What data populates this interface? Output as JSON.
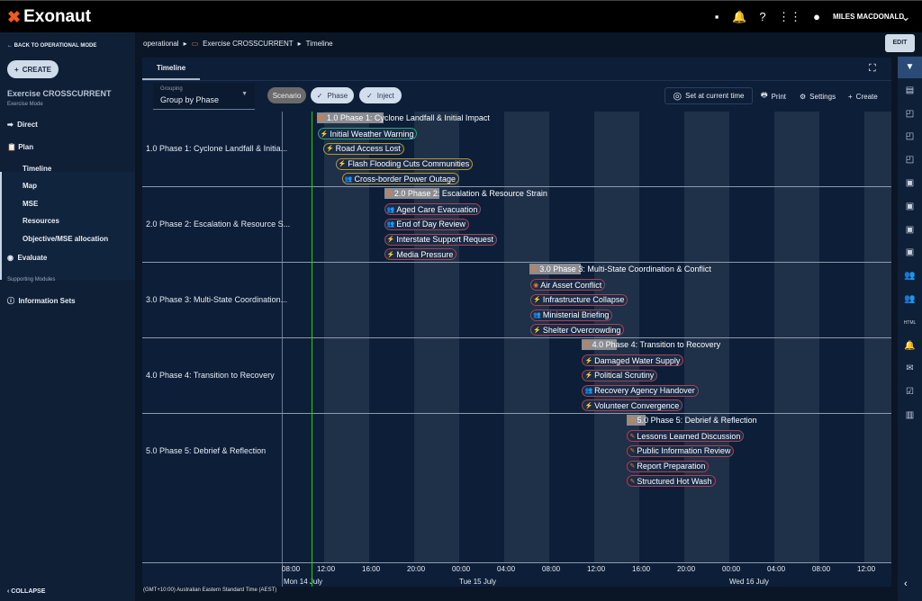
{
  "app": {
    "name": "Exonaut",
    "user": "MILES MACDONALD"
  },
  "topbar_icons": [
    "feedback-icon",
    "bell-icon",
    "help-icon",
    "apps-grid-icon",
    "account-icon",
    "chevron-down-icon"
  ],
  "sidebar": {
    "back": "BACK TO OPERATIONAL MODE",
    "create": "CREATE",
    "exercise_title": "Exercise CROSSCURRENT",
    "mode": "Exercise Mode",
    "direct": "Direct",
    "plan": "Plan",
    "plan_items": [
      "Timeline",
      "Map",
      "MSE",
      "Resources",
      "Objective/MSE allocation"
    ],
    "active_item": "Timeline",
    "evaluate": "Evaluate",
    "supporting": "Supporting Modules",
    "info_sets": "Information Sets",
    "collapse": "COLLAPSE"
  },
  "breadcrumb": [
    "operational",
    "Exercise CROSSCURRENT",
    "Timeline"
  ],
  "edit_label": "EDIT",
  "tab": "Timeline",
  "grouping": {
    "label": "Grouping",
    "value": "Group by Phase"
  },
  "filters": [
    {
      "label": "Scenario",
      "selected": false
    },
    {
      "label": "Phase",
      "selected": true
    },
    {
      "label": "Inject",
      "selected": true
    }
  ],
  "toolbar": {
    "set_now": "Set at current time",
    "print": "Print",
    "settings": "Settings",
    "create": "Create"
  },
  "timeline": {
    "current_time": "14 July 10:50",
    "ticks": [
      "08:00",
      "12:00",
      "16:00",
      "20:00",
      "00:00",
      "04:00",
      "08:00",
      "12:00",
      "16:00",
      "20:00",
      "00:00",
      "04:00",
      "08:00",
      "12:00"
    ],
    "dates": [
      "Mon 14 July",
      "Tue 15 July",
      "Wed 16 July"
    ],
    "timezone": "(GMT+10:00) Australian Eastern Standard Time (AEST)",
    "colors": {
      "teal": "#2aa57a",
      "gold": "#b8962e",
      "red": "#a8434f",
      "icon": "#f07a2a",
      "now": "#3cb043"
    },
    "groups": [
      {
        "label": "1.0 Phase 1: Cyclone Landfall & Initia...",
        "phase": {
          "title": "1.0 Phase 1: Cyclone Landfall & Initial Impact",
          "start": "14 July 11:20",
          "end": "14 July 17:15"
        },
        "events": [
          {
            "title": "Initial Weather Warning",
            "start": "14 July 11:25",
            "icon": "bolt",
            "color": "teal"
          },
          {
            "title": "Road Access Lost",
            "start": "14 July 11:55",
            "icon": "bolt",
            "color": "gold"
          },
          {
            "title": "Flash Flooding Cuts Communities",
            "start": "14 July 13:00",
            "icon": "bolt",
            "color": "gold"
          },
          {
            "title": "Cross-border Power Outage",
            "start": "14 July 13:35",
            "icon": "group",
            "color": "gold"
          }
        ]
      },
      {
        "label": "2.0 Phase 2: Escalation & Resource S...",
        "phase": {
          "title": "2.0 Phase 2: Escalation & Resource Strain",
          "start": "14 July 17:20",
          "end": "14 July 22:15"
        },
        "events": [
          {
            "title": "Aged Care Evacuation",
            "start": "14 July 17:20",
            "icon": "group",
            "color": "red"
          },
          {
            "title": "End of Day Review",
            "start": "14 July 17:20",
            "icon": "group",
            "color": "red"
          },
          {
            "title": "Interstate Support Request",
            "start": "14 July 17:20",
            "icon": "bolt",
            "color": "red"
          },
          {
            "title": "Media Pressure",
            "start": "14 July 17:20",
            "icon": "bolt",
            "color": "red"
          }
        ]
      },
      {
        "label": "3.0 Phase 3: Multi-State Coordination...",
        "phase": {
          "title": "3.0 Phase 3: Multi-State Coordination & Conflict",
          "start": "15 July 06:15",
          "end": "15 July 10:50"
        },
        "events": [
          {
            "title": "Air Asset Conflict",
            "start": "15 July 06:20",
            "icon": "target",
            "color": "red"
          },
          {
            "title": "Infrastructure Collapse",
            "start": "15 July 06:20",
            "icon": "bolt",
            "color": "red"
          },
          {
            "title": "Ministerial Briefing",
            "start": "15 July 06:20",
            "icon": "group",
            "color": "red"
          },
          {
            "title": "Shelter Overcrowding",
            "start": "15 July 06:20",
            "icon": "bolt",
            "color": "red"
          }
        ]
      },
      {
        "label": "4.0 Phase 4: Transition to Recovery",
        "phase": {
          "title": "4.0 Phase 4: Transition to Recovery",
          "start": "15 July 10:55",
          "end": "15 July 14:00"
        },
        "events": [
          {
            "title": "Damaged Water Supply",
            "start": "15 July 10:55",
            "icon": "bolt",
            "color": "red"
          },
          {
            "title": "Political Scrutiny",
            "start": "15 July 10:55",
            "icon": "bolt",
            "color": "red"
          },
          {
            "title": "Recovery Agency Handover",
            "start": "15 July 10:55",
            "icon": "group",
            "color": "red"
          },
          {
            "title": "Volunteer Convergence",
            "start": "15 July 10:55",
            "icon": "bolt",
            "color": "red"
          }
        ]
      },
      {
        "label": "5.0 Phase 5: Debrief & Reflection",
        "phase": {
          "title": "5.0 Phase 5: Debrief & Reflection",
          "start": "15 July 14:55",
          "end": "15 July 16:35"
        },
        "events": [
          {
            "title": "Lessons Learned Discussion",
            "start": "15 July 14:55",
            "icon": "edit",
            "color": "red"
          },
          {
            "title": "Public Information Review",
            "start": "15 July 14:55",
            "icon": "edit",
            "color": "red"
          },
          {
            "title": "Report Preparation",
            "start": "15 July 14:55",
            "icon": "edit",
            "color": "red"
          },
          {
            "title": "Structured Hot Wash",
            "start": "15 July 14:55",
            "icon": "edit",
            "color": "red"
          }
        ]
      }
    ]
  },
  "right_rail": [
    {
      "icon": "filter-icon",
      "glyph": "▼",
      "active": true
    },
    {
      "icon": "document-icon",
      "glyph": "▤"
    },
    {
      "icon": "card-icon",
      "glyph": "◰"
    },
    {
      "icon": "card-icon",
      "glyph": "◰"
    },
    {
      "icon": "card-icon",
      "glyph": "◰"
    },
    {
      "icon": "archive-icon",
      "glyph": "▣"
    },
    {
      "icon": "archive-icon",
      "glyph": "▣"
    },
    {
      "icon": "archive-icon",
      "glyph": "▣"
    },
    {
      "icon": "archive-icon",
      "glyph": "▣"
    },
    {
      "icon": "people-icon",
      "glyph": "👥"
    },
    {
      "icon": "people-icon",
      "glyph": "👥"
    },
    {
      "icon": "html-icon",
      "glyph": "HTML"
    },
    {
      "icon": "bell-icon",
      "glyph": "🔔"
    },
    {
      "icon": "mail-icon",
      "glyph": "✉"
    },
    {
      "icon": "checklist-icon",
      "glyph": "☑"
    },
    {
      "icon": "map-icon",
      "glyph": "▥"
    }
  ]
}
